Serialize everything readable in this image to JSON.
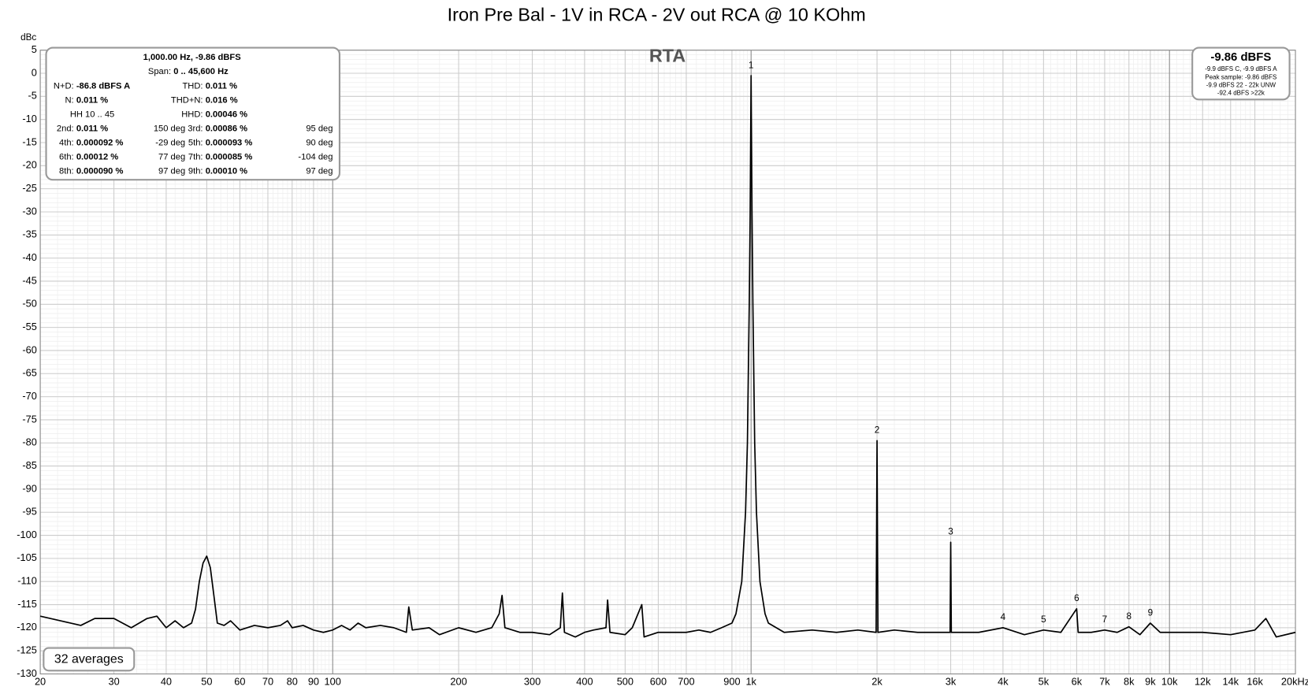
{
  "chart_data": {
    "type": "line",
    "title": "Iron Pre Bal - 1V in RCA - 2V out RCA @ 10 KOhm",
    "y_label": "dBc",
    "plot_label": "RTA",
    "averages_label": "32 averages",
    "log_x": true,
    "grid": true,
    "color": "#000000",
    "xlim": [
      20,
      20000
    ],
    "ylim": [
      -130,
      5
    ],
    "xticks": [
      20,
      30,
      40,
      50,
      60,
      70,
      80,
      90,
      100,
      200,
      300,
      400,
      500,
      600,
      700,
      900,
      {
        "value": 1000,
        "label": "1k"
      },
      {
        "value": 2000,
        "label": "2k"
      },
      {
        "value": 3000,
        "label": "3k"
      },
      {
        "value": 4000,
        "label": "4k"
      },
      {
        "value": 5000,
        "label": "5k"
      },
      {
        "value": 6000,
        "label": "6k"
      },
      {
        "value": 7000,
        "label": "7k"
      },
      {
        "value": 8000,
        "label": "8k"
      },
      {
        "value": 9000,
        "label": "9k"
      },
      {
        "value": 10000,
        "label": "10k"
      },
      {
        "value": 12000,
        "label": "12k"
      },
      {
        "value": 14000,
        "label": "14k"
      },
      {
        "value": 16000,
        "label": "16k"
      },
      {
        "value": 20000,
        "label": "20kHz"
      }
    ],
    "yticks": [
      5,
      0,
      -5,
      -10,
      -15,
      -20,
      -25,
      -30,
      -35,
      -40,
      -45,
      -50,
      -55,
      -60,
      -65,
      -70,
      -75,
      -80,
      -85,
      -90,
      -95,
      -100,
      -105,
      -110,
      -115,
      -120,
      -125,
      -130
    ],
    "x": [
      20,
      25,
      27,
      30,
      33,
      36,
      38,
      40,
      42,
      44,
      46,
      47,
      48,
      49,
      50,
      51,
      52,
      53,
      55,
      57,
      60,
      65,
      70,
      75,
      78,
      80,
      85,
      90,
      95,
      100,
      105,
      110,
      115,
      120,
      130,
      140,
      150,
      152,
      155,
      170,
      180,
      200,
      220,
      240,
      250,
      254,
      258,
      280,
      300,
      330,
      350,
      354,
      358,
      380,
      400,
      420,
      450,
      454,
      460,
      500,
      520,
      548,
      555,
      600,
      650,
      700,
      750,
      800,
      850,
      900,
      920,
      950,
      970,
      980,
      990,
      995,
      1000,
      1005,
      1010,
      1020,
      1030,
      1050,
      1080,
      1100,
      1200,
      1400,
      1600,
      1800,
      1990,
      2000,
      2010,
      2200,
      2500,
      2800,
      2990,
      3000,
      3010,
      3500,
      4000,
      4500,
      5000,
      5500,
      6000,
      6050,
      6500,
      7000,
      7500,
      8000,
      8500,
      9000,
      9500,
      10000,
      12000,
      14000,
      16000,
      17000,
      18000,
      20000
    ],
    "values": [
      -117.5,
      -119.5,
      -118,
      -118,
      -120,
      -118,
      -117.5,
      -120,
      -118.5,
      -120,
      -119,
      -116,
      -110,
      -106,
      -104.5,
      -107,
      -113,
      -119,
      -119.5,
      -118.5,
      -120.5,
      -119.5,
      -120,
      -119.5,
      -118.5,
      -120,
      -119.5,
      -120.5,
      -121,
      -120.5,
      -119.5,
      -120.5,
      -119,
      -120,
      -119.5,
      -120,
      -121,
      -115.5,
      -120.5,
      -120,
      -121.5,
      -120,
      -121,
      -120,
      -117,
      -113,
      -120,
      -121,
      -121,
      -121.5,
      -120,
      -112.5,
      -121,
      -122,
      -121,
      -120.5,
      -120,
      -114,
      -121,
      -121.5,
      -120,
      -115,
      -122,
      -121,
      -121,
      -121,
      -120.5,
      -121,
      -120,
      -119,
      -117,
      -110,
      -95,
      -80,
      -50,
      -30,
      -0.5,
      -30,
      -50,
      -80,
      -95,
      -110,
      -117,
      -119,
      -121,
      -120.5,
      -121,
      -120.5,
      -121,
      -79.5,
      -121,
      -120.5,
      -121,
      -121,
      -121,
      -101.5,
      -121,
      -121,
      -120,
      -121.5,
      -120.5,
      -121,
      -115.9,
      -121,
      -121,
      -120.5,
      -121,
      -119.8,
      -121.5,
      -119,
      -121,
      -121,
      -121,
      -121.5,
      -120.5,
      -118,
      -122,
      -121
    ],
    "markers": [
      {
        "label": "1",
        "x": 1000,
        "y": -0.5
      },
      {
        "label": "2",
        "x": 2000,
        "y": -79.5
      },
      {
        "label": "3",
        "x": 3000,
        "y": -101.5
      },
      {
        "label": "4",
        "x": 4000,
        "y": -120
      },
      {
        "label": "5",
        "x": 5000,
        "y": -120.5
      },
      {
        "label": "6",
        "x": 6000,
        "y": -115.9
      },
      {
        "label": "7",
        "x": 7000,
        "y": -120.5
      },
      {
        "label": "8",
        "x": 8000,
        "y": -119.8
      },
      {
        "label": "9",
        "x": 9000,
        "y": -119
      }
    ],
    "info_box": {
      "header": "1,000.00 Hz, -9.86 dBFS",
      "span_label": "Span:",
      "span_value": "0 .. 45,600 Hz",
      "rows": [
        {
          "left": {
            "label": "N+D:",
            "value": "-86.8 dBFS A"
          },
          "right": {
            "label": "THD:",
            "value": "0.011 %"
          }
        },
        {
          "left": {
            "label": "N:",
            "value": "0.011 %"
          },
          "right": {
            "label": "THD+N:",
            "value": "0.016 %"
          }
        },
        {
          "left": {
            "label": "HH 10 .. 45"
          },
          "right": {
            "label": "HHD:",
            "value": "0.00046 %"
          }
        },
        {
          "left": {
            "label": "2nd:",
            "value": "0.011 %",
            "phase": "150 deg"
          },
          "right": {
            "label": "3rd:",
            "value": "0.00086 %",
            "phase": "95 deg"
          }
        },
        {
          "left": {
            "label": "4th:",
            "value": "0.000092 %",
            "phase": "-29 deg"
          },
          "right": {
            "label": "5th:",
            "value": "0.000093 %",
            "phase": "90 deg"
          }
        },
        {
          "left": {
            "label": "6th:",
            "value": "0.00012 %",
            "phase": "77 deg"
          },
          "right": {
            "label": "7th:",
            "value": "0.000085 %",
            "phase": "-104 deg"
          }
        },
        {
          "left": {
            "label": "8th:",
            "value": "0.000090 %",
            "phase": "97 deg"
          },
          "right": {
            "label": "9th:",
            "value": "0.00010 %",
            "phase": "97 deg"
          }
        }
      ]
    },
    "level_box": {
      "headline": "-9.86 dBFS",
      "lines": [
        "-9.9 dBFS C, -9.9 dBFS A",
        "Peak sample: -9.86 dBFS",
        "-9.9 dBFS 22 - 22k UNW",
        "-92.4 dBFS >22k"
      ]
    }
  }
}
